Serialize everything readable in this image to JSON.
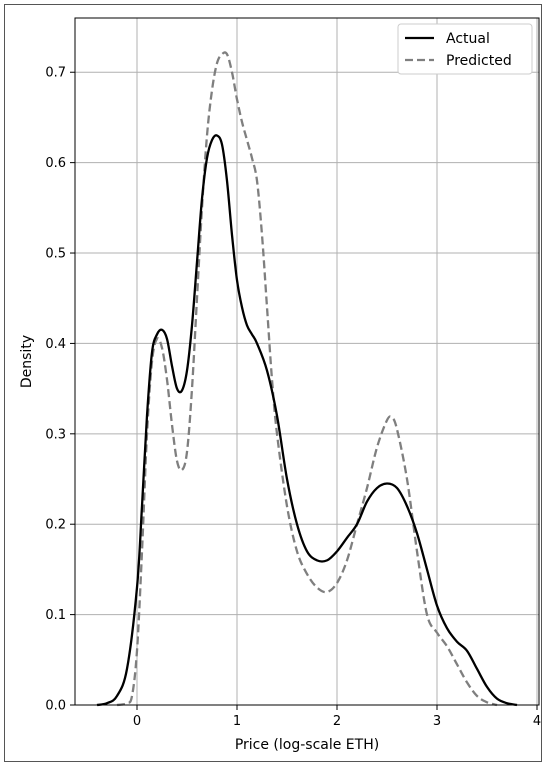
{
  "chart_data": {
    "type": "line",
    "xlabel": "Price (log-scale ETH)",
    "ylabel": "Density",
    "xlim": [
      -0.62,
      4.02
    ],
    "ylim": [
      0,
      0.76
    ],
    "xticks": [
      0,
      1,
      2,
      3,
      4
    ],
    "yticks": [
      0.0,
      0.1,
      0.2,
      0.3,
      0.4,
      0.5,
      0.6,
      0.7
    ],
    "grid": true,
    "legend_position": "top-right",
    "series": [
      {
        "name": "Actual",
        "color": "#000000",
        "style": "solid",
        "x": [
          -0.4,
          -0.3,
          -0.2,
          -0.1,
          0.0,
          0.05,
          0.1,
          0.15,
          0.2,
          0.25,
          0.3,
          0.35,
          0.4,
          0.45,
          0.5,
          0.55,
          0.6,
          0.65,
          0.7,
          0.75,
          0.8,
          0.85,
          0.9,
          0.95,
          1.0,
          1.05,
          1.1,
          1.15,
          1.2,
          1.3,
          1.4,
          1.5,
          1.6,
          1.7,
          1.8,
          1.9,
          2.0,
          2.1,
          2.2,
          2.3,
          2.4,
          2.5,
          2.6,
          2.7,
          2.8,
          2.9,
          3.0,
          3.1,
          3.2,
          3.3,
          3.4,
          3.5,
          3.6,
          3.7,
          3.8
        ],
        "y": [
          0.0,
          0.002,
          0.01,
          0.04,
          0.13,
          0.22,
          0.32,
          0.39,
          0.41,
          0.415,
          0.405,
          0.375,
          0.35,
          0.348,
          0.37,
          0.42,
          0.49,
          0.56,
          0.605,
          0.625,
          0.63,
          0.62,
          0.58,
          0.52,
          0.47,
          0.44,
          0.42,
          0.41,
          0.4,
          0.37,
          0.32,
          0.25,
          0.2,
          0.17,
          0.16,
          0.16,
          0.17,
          0.185,
          0.2,
          0.225,
          0.24,
          0.245,
          0.24,
          0.22,
          0.19,
          0.15,
          0.11,
          0.085,
          0.07,
          0.06,
          0.04,
          0.02,
          0.007,
          0.002,
          0.0
        ]
      },
      {
        "name": "Predicted",
        "color": "#7f7f7f",
        "style": "dashed",
        "x": [
          -0.2,
          -0.1,
          -0.05,
          0.0,
          0.05,
          0.1,
          0.15,
          0.2,
          0.25,
          0.3,
          0.35,
          0.4,
          0.45,
          0.5,
          0.55,
          0.6,
          0.65,
          0.7,
          0.75,
          0.8,
          0.85,
          0.9,
          0.95,
          1.0,
          1.05,
          1.1,
          1.15,
          1.2,
          1.25,
          1.3,
          1.35,
          1.4,
          1.5,
          1.6,
          1.7,
          1.8,
          1.9,
          2.0,
          2.1,
          2.2,
          2.3,
          2.4,
          2.5,
          2.55,
          2.6,
          2.7,
          2.8,
          2.9,
          3.0,
          3.1,
          3.2,
          3.3,
          3.4,
          3.5,
          3.6
        ],
        "y": [
          0.0,
          0.002,
          0.01,
          0.06,
          0.17,
          0.3,
          0.38,
          0.405,
          0.395,
          0.36,
          0.31,
          0.27,
          0.26,
          0.28,
          0.35,
          0.45,
          0.55,
          0.63,
          0.68,
          0.71,
          0.72,
          0.72,
          0.7,
          0.67,
          0.645,
          0.625,
          0.605,
          0.58,
          0.52,
          0.44,
          0.36,
          0.3,
          0.22,
          0.17,
          0.145,
          0.13,
          0.125,
          0.135,
          0.16,
          0.2,
          0.24,
          0.285,
          0.315,
          0.318,
          0.305,
          0.25,
          0.17,
          0.1,
          0.08,
          0.065,
          0.045,
          0.025,
          0.01,
          0.003,
          0.0
        ]
      }
    ]
  }
}
